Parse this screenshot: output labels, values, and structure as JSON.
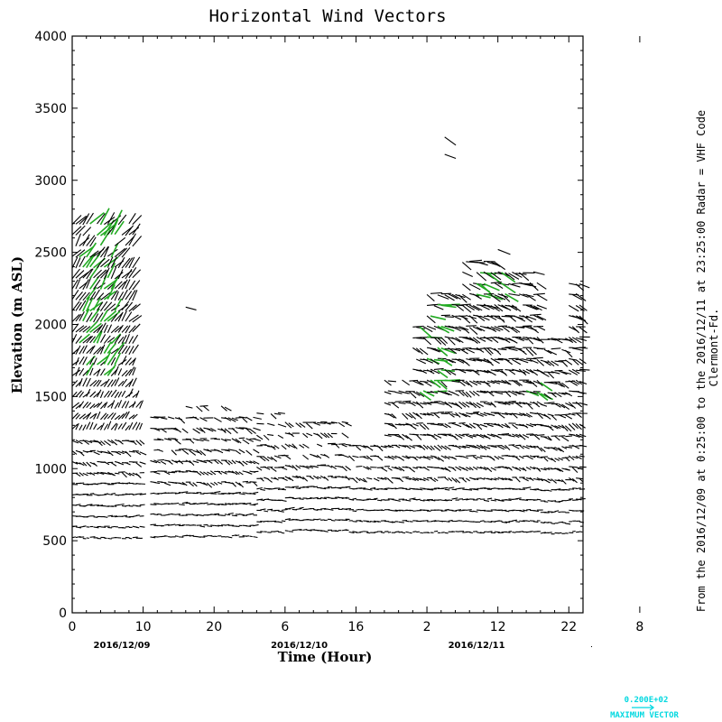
{
  "chart_data": {
    "type": "vector-field",
    "title": "Horizontal Wind Vectors",
    "xlabel": "Time (Hour)",
    "ylabel": "Elevation (m ASL)",
    "ylim": [
      0,
      4000
    ],
    "xlim": [
      0,
      72
    ],
    "y_ticks": [
      "0",
      "500",
      "1000",
      "1500",
      "2000",
      "2500",
      "3000",
      "3500",
      "4000"
    ],
    "x_tick_labels": [
      "0",
      "10",
      "20",
      "6",
      "16",
      "2",
      "12",
      "22",
      "8"
    ],
    "x_tick_hours": [
      0,
      10,
      20,
      30,
      40,
      50,
      60,
      70,
      80
    ],
    "date_labels": [
      {
        "label": "2016/12/09",
        "hour": 7
      },
      {
        "label": "2016/12/10",
        "hour": 32
      },
      {
        "label": "2016/12/11",
        "hour": 57
      }
    ],
    "side_text_1": "From the 2016/12/09 at  0:25:00 to the 2016/12/11 at 23:25:00 Radar = VHF Code",
    "side_text_2": "Clermont-Fd.",
    "legend": {
      "value": "0.200E+02",
      "label": "MAXIMUM VECTOR"
    },
    "colors": {
      "normal": "#000000",
      "strong": "#22aa22",
      "legend": "#00d8e0"
    },
    "coverage": [
      {
        "from": 0,
        "to": 9,
        "bottom": 520,
        "top": 2700
      },
      {
        "from": 9,
        "to": 10,
        "bottom": 520,
        "top": 1550
      },
      {
        "from": 11,
        "to": 13,
        "bottom": 530,
        "top": 1400
      },
      {
        "from": 13,
        "to": 16,
        "bottom": 530,
        "top": 1420
      },
      {
        "from": 16,
        "to": 22,
        "bottom": 530,
        "top": 1470
      },
      {
        "from": 22,
        "to": 26,
        "bottom": 530,
        "top": 1380
      },
      {
        "from": 26,
        "to": 30,
        "bottom": 560,
        "top": 1430
      },
      {
        "from": 30,
        "to": 39,
        "bottom": 570,
        "top": 1360
      },
      {
        "from": 39,
        "to": 44,
        "bottom": 560,
        "top": 1200
      },
      {
        "from": 44,
        "to": 48,
        "bottom": 560,
        "top": 1650
      },
      {
        "from": 48,
        "to": 50,
        "bottom": 560,
        "top": 1990
      },
      {
        "from": 50,
        "to": 55,
        "bottom": 560,
        "top": 2220
      },
      {
        "from": 55,
        "to": 60,
        "bottom": 560,
        "top": 2460
      },
      {
        "from": 60,
        "to": 66,
        "bottom": 560,
        "top": 2380
      },
      {
        "from": 66,
        "to": 70,
        "bottom": 550,
        "top": 1900
      },
      {
        "from": 70,
        "to": 72,
        "bottom": 560,
        "top": 2320
      }
    ],
    "isolated": [
      {
        "hour": 16,
        "elevation": 2120
      },
      {
        "hour": 52.5,
        "elevation": 3180
      },
      {
        "hour": 52.5,
        "elevation": 3300
      },
      {
        "hour": 60,
        "elevation": 2520
      }
    ],
    "strong_regions": [
      {
        "from": 1,
        "to": 6,
        "bottom": 1600,
        "top": 2700
      },
      {
        "from": 49,
        "to": 53,
        "bottom": 1500,
        "top": 2200
      },
      {
        "from": 57,
        "to": 61,
        "bottom": 2150,
        "top": 2400
      },
      {
        "from": 64,
        "to": 66,
        "bottom": 1500,
        "top": 1700
      }
    ]
  }
}
